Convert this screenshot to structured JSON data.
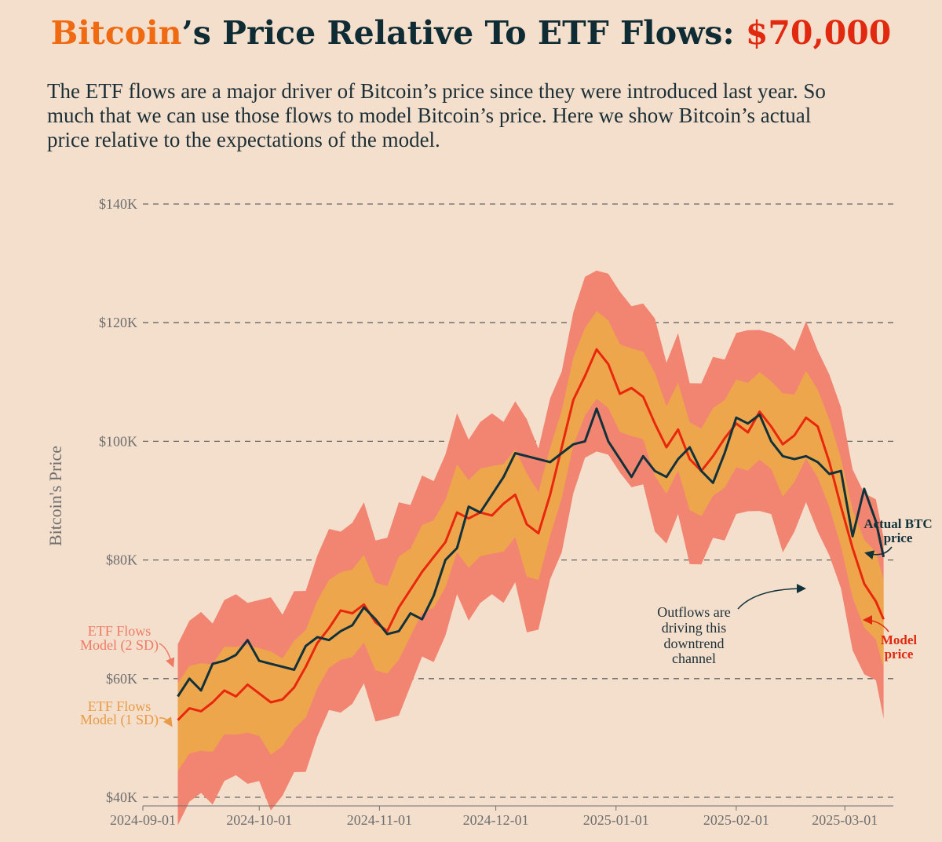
{
  "header": {
    "title_brand": "Bitcoin",
    "title_middle": "’s Price Relative To ETF Flows: ",
    "title_price": "$70,000",
    "subtitle": "The ETF flows are a major driver of Bitcoin’s price since they were introduced last year. So much that we can use those flows to model Bitcoin’s price. Here we show Bitcoin’s actual price relative to the expectations of the model."
  },
  "colors": {
    "background": "#f4dfcd",
    "band_2sd": "#f28572",
    "band_1sd": "#eea64c",
    "model_line": "#e8270c",
    "actual_line": "#11323a",
    "grid": "#666666",
    "brand_orange": "#f06a12",
    "price_red": "#e0290f"
  },
  "chart_data": {
    "type": "line",
    "title": "Bitcoin’s Price Relative To ETF Flows: $70,000",
    "ylabel": "Bitcoin's Price",
    "xlabel": "",
    "ylim": [
      40,
      140
    ],
    "y_unit": "K USD",
    "y_ticks": [
      {
        "value": 40,
        "label": "$40K"
      },
      {
        "value": 60,
        "label": "$60K"
      },
      {
        "value": 80,
        "label": "$80K"
      },
      {
        "value": 100,
        "label": "$100K"
      },
      {
        "value": 120,
        "label": "$120K"
      },
      {
        "value": 140,
        "label": "$140K"
      }
    ],
    "x_start": "2024-09-01",
    "x_end": "2025-03-14",
    "x_ticks": [
      {
        "day": 0,
        "label": "2024-09-01"
      },
      {
        "day": 30,
        "label": "2024-10-01"
      },
      {
        "day": 61,
        "label": "2024-11-01"
      },
      {
        "day": 91,
        "label": "2024-12-01"
      },
      {
        "day": 122,
        "label": "2025-01-01"
      },
      {
        "day": 153,
        "label": "2025-02-01"
      },
      {
        "day": 181,
        "label": "2025-03-01"
      }
    ],
    "grid": "horizontal dashed",
    "x_day": [
      9,
      12,
      15,
      18,
      21,
      24,
      27,
      30,
      33,
      36,
      39,
      42,
      45,
      48,
      51,
      54,
      57,
      60,
      63,
      66,
      69,
      72,
      75,
      78,
      81,
      84,
      87,
      90,
      93,
      96,
      99,
      102,
      105,
      108,
      111,
      114,
      117,
      120,
      123,
      126,
      129,
      132,
      135,
      138,
      141,
      144,
      147,
      150,
      153,
      156,
      159,
      162,
      165,
      168,
      171,
      174,
      177,
      180,
      183,
      186,
      189,
      191
    ],
    "series": [
      {
        "name": "Actual BTC price",
        "values": [
          57.0,
          60.0,
          58.0,
          62.5,
          63.0,
          64.0,
          66.5,
          63.0,
          62.5,
          62.0,
          61.5,
          65.5,
          67.0,
          66.5,
          68.0,
          69.0,
          72.0,
          70.0,
          67.5,
          68.0,
          71.0,
          70.0,
          74.0,
          80.0,
          82.0,
          89.0,
          88.0,
          91.0,
          94.0,
          98.0,
          97.5,
          97.0,
          96.5,
          98.0,
          99.5,
          100.0,
          105.5,
          100.0,
          97.0,
          94.0,
          97.5,
          95.0,
          94.0,
          97.0,
          99.0,
          95.0,
          93.0,
          98.0,
          104.0,
          103.0,
          104.5,
          100.0,
          97.5,
          97.0,
          97.5,
          96.5,
          94.5,
          95.0,
          84.0,
          92.0,
          86.5,
          80.5
        ]
      },
      {
        "name": "ETF Flows Model price",
        "values": [
          53.0,
          55.0,
          54.5,
          56.0,
          58.0,
          57.0,
          59.0,
          57.5,
          56.0,
          56.5,
          58.5,
          62.0,
          66.0,
          68.5,
          71.5,
          71.0,
          72.5,
          69.5,
          68.0,
          72.0,
          75.0,
          78.0,
          80.5,
          83.0,
          88.0,
          87.0,
          88.0,
          87.5,
          89.5,
          91.0,
          86.0,
          84.5,
          91.0,
          99.0,
          107.0,
          111.0,
          115.5,
          113.0,
          108.0,
          109.0,
          107.5,
          103.0,
          99.0,
          102.0,
          97.0,
          95.0,
          97.5,
          100.5,
          103.0,
          101.5,
          105.0,
          102.5,
          99.5,
          101.0,
          104.0,
          102.5,
          96.5,
          89.0,
          82.0,
          76.0,
          73.0,
          70.0
        ]
      }
    ],
    "bands": [
      {
        "name": "ETF Flows Model (1 SD)",
        "half_width": 7.5
      },
      {
        "name": "ETF Flows Model (2 SD)",
        "half_width": 15.5
      }
    ]
  },
  "annotations": {
    "etf_2sd_line1": "ETF Flows",
    "etf_2sd_line2": "Model (2 SD)",
    "etf_1sd_line1": "ETF Flows",
    "etf_1sd_line2": "Model (1 SD)",
    "actual_line1": "Actual BTC",
    "actual_line2": "price",
    "model_line1": "Model",
    "model_line2": "price",
    "outflow_line1": "Outflows are",
    "outflow_line2": "driving this",
    "outflow_line3": "downtrend",
    "outflow_line4": "channel"
  }
}
